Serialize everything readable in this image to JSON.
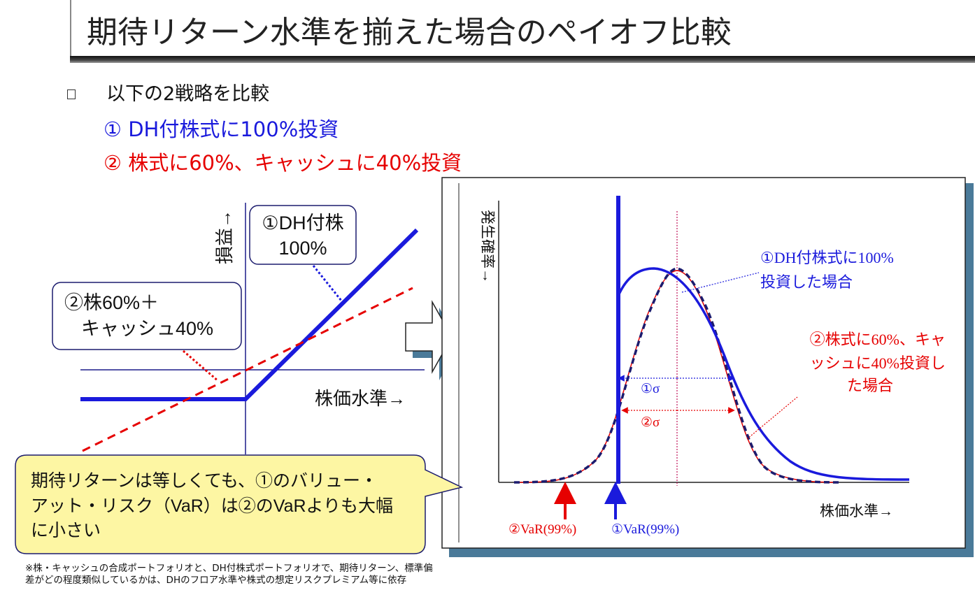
{
  "title": "期待リターン水準を揃えた場合のペイオフ比較",
  "intro": "以下の2戦略を比較",
  "strategy1": "① DH付株式に100%投資",
  "strategy2": "② 株式に60%、キャッシュに40%投資",
  "left_diagram": {
    "y_axis_label": "損益→",
    "x_axis_label": "株価水準→",
    "callout1_line1": "①DH付株",
    "callout1_line2": "100%",
    "callout2_line1": "②株60%＋",
    "callout2_line2": "キャッシュ40%"
  },
  "right_diagram": {
    "y_axis_label": "発生確率→",
    "x_axis_label": "株価水準→",
    "label1_line1": "①DH付株式に100%",
    "label1_line2": "投資した場合",
    "label2_line1": "②株式に60%、キャ",
    "label2_line2": "ッシュに40%投資し",
    "label2_line3": "た場合",
    "sigma1": "①σ",
    "sigma2": "②σ",
    "var2": "②VaR(99%)",
    "var1": "①VaR(99%)"
  },
  "speech_bubble": {
    "line1": "期待リターンは等しくても、①のバリュー・",
    "line2": "アット・リスク（VaR）は②のVaRよりも大幅",
    "line3": "に小さい"
  },
  "footnote": "※株・キャッシュの合成ポートフォリオと、DH付株式ポートフォリオで、期待リターン、標準偏差がどの程度類似しているかは、DHのフロア水準や株式の想定リスクプレミアム等に依存",
  "colors": {
    "blue": "#1a1adc",
    "red": "#e60000",
    "navy": "#1c1c6e",
    "bubble_fill": "#fdf6a3",
    "panel_shadow": "#4a7a99"
  }
}
